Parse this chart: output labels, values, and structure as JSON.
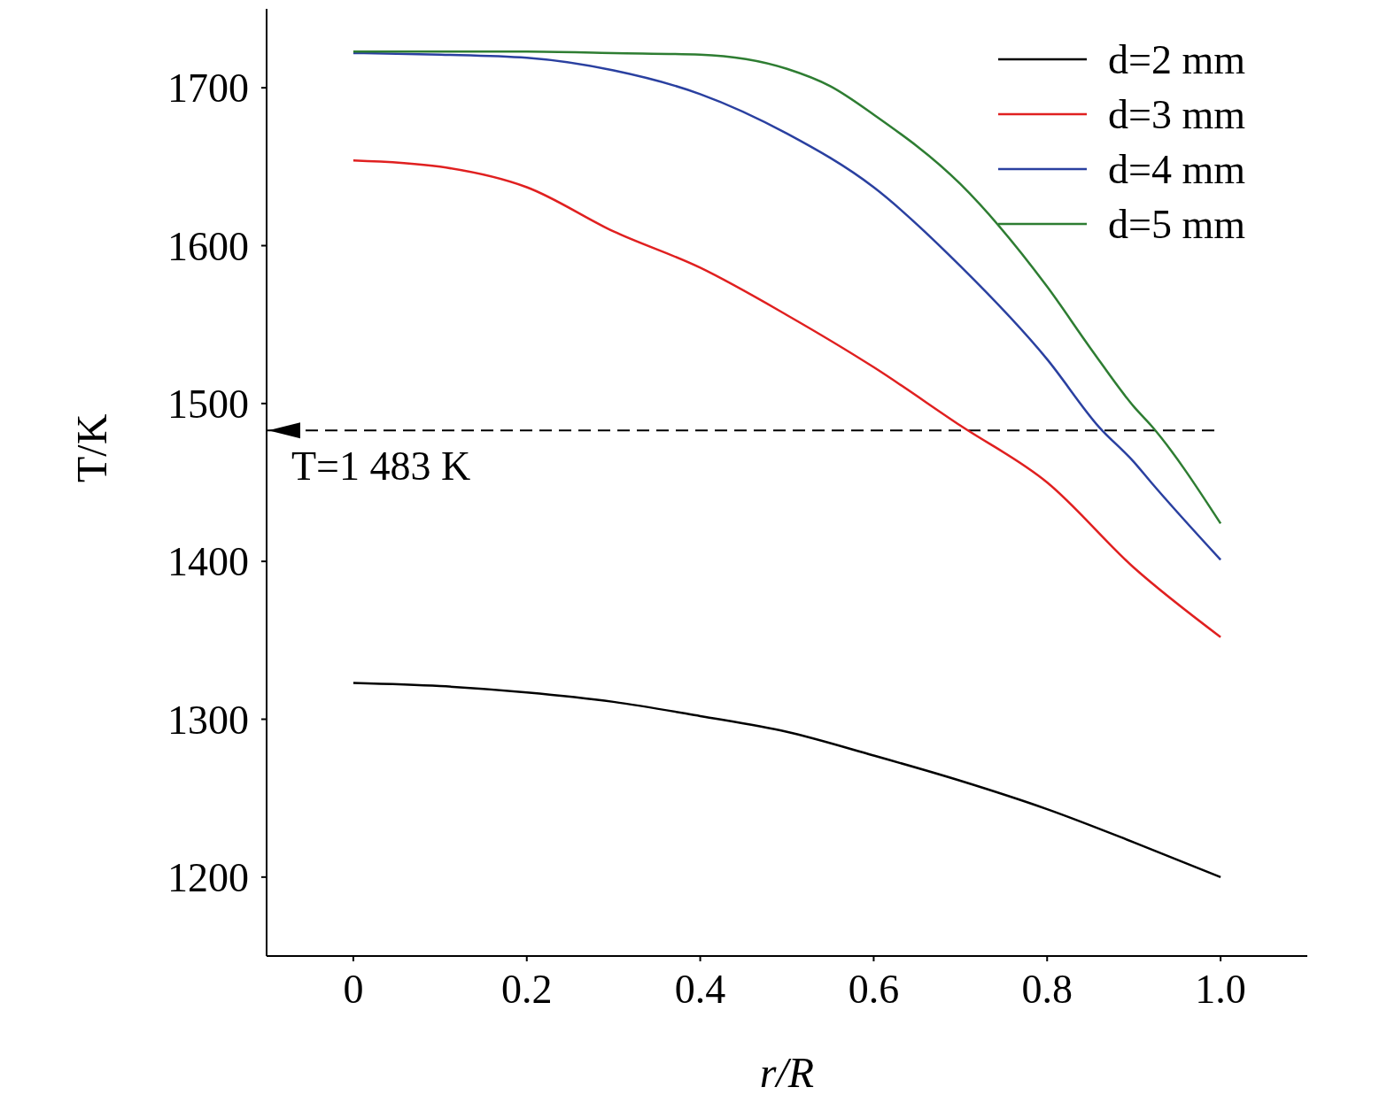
{
  "chart_data": {
    "type": "line",
    "xlabel": "r/R",
    "ylabel": "T/K",
    "x": [
      0,
      0.1,
      0.2,
      0.3,
      0.4,
      0.5,
      0.6,
      0.7,
      0.8,
      0.9,
      1.0
    ],
    "series": [
      {
        "name": "d=2 mm",
        "color": "#000000",
        "values": [
          1323,
          1321,
          1317,
          1311,
          1302,
          1292,
          1277,
          1261,
          1243,
          1222,
          1200
        ]
      },
      {
        "name": "d=3 mm",
        "color": "#e02020",
        "values": [
          1654,
          1650,
          1637,
          1609,
          1586,
          1556,
          1523,
          1486,
          1450,
          1396,
          1352
        ]
      },
      {
        "name": "d=4 mm",
        "color": "#2a40a0",
        "x": [
          0,
          0.1,
          0.2,
          0.3,
          0.4,
          0.5,
          0.6,
          0.7,
          0.8,
          0.86,
          0.9,
          0.92,
          1.0
        ],
        "values": [
          1722,
          1721,
          1719,
          1711,
          1696,
          1671,
          1637,
          1587,
          1528,
          1485,
          1463,
          1450,
          1401
        ]
      },
      {
        "name": "d=5 mm",
        "color": "#2e7d32",
        "x": [
          0,
          0.2,
          0.3,
          0.4,
          0.5,
          0.55,
          0.6,
          0.7,
          0.8,
          0.85,
          0.9,
          0.92,
          1.0
        ],
        "values": [
          1723,
          1723,
          1722,
          1721,
          1712,
          1701,
          1683,
          1639,
          1574,
          1535,
          1498,
          1486,
          1424
        ]
      }
    ],
    "xlim": [
      -0.1,
      1.1
    ],
    "xticks": [
      0,
      0.2,
      0.4,
      0.6,
      0.8,
      {
        "value": 1.0,
        "label": "1.0"
      }
    ],
    "ylim": [
      1150,
      1750
    ],
    "yticks": [
      1200,
      1300,
      1400,
      1500,
      1600,
      1700
    ],
    "ref_lines": [
      {
        "axis": "y",
        "value": 1483,
        "label": "T=1 483 K",
        "color": "#000000",
        "line_style": "dashed"
      }
    ],
    "legend": "top right",
    "grid": false,
    "marker": "none",
    "line_style": "solid"
  }
}
